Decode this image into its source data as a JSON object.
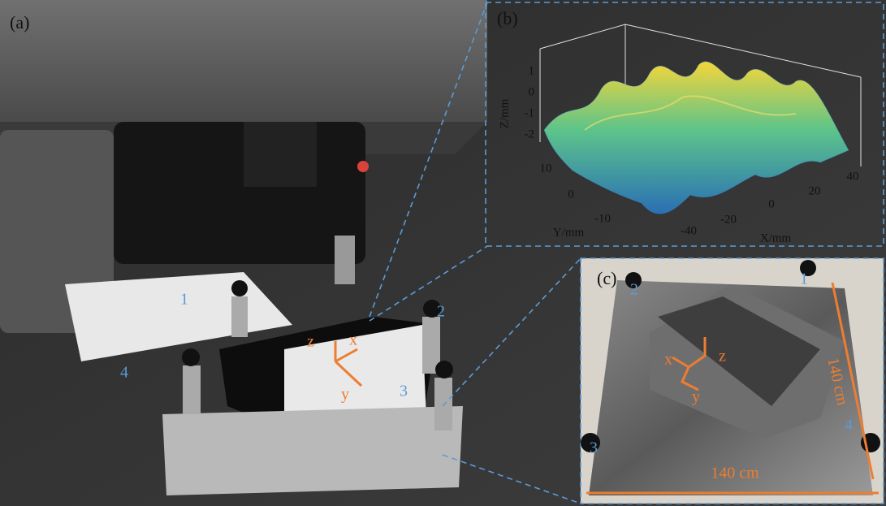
{
  "panels": {
    "a": {
      "label": "(a)",
      "markers": [
        "1",
        "2",
        "3",
        "4"
      ],
      "axes": [
        "x",
        "y",
        "z"
      ]
    },
    "b": {
      "label": "(b)",
      "z_label": "Z/mm",
      "z_ticks": [
        "1",
        "0",
        "-1",
        "-2"
      ],
      "y_label": "Y/mm",
      "y_ticks": [
        "10",
        "0",
        "-10"
      ],
      "x_label": "X/mm",
      "x_ticks": [
        "-40",
        "-20",
        "0",
        "20",
        "40"
      ]
    },
    "c": {
      "label": "(c)",
      "markers": [
        "1",
        "2",
        "3",
        "4"
      ],
      "axes": [
        "x",
        "y",
        "z"
      ],
      "width_label": "140 cm",
      "height_label": "140 cm"
    }
  }
}
